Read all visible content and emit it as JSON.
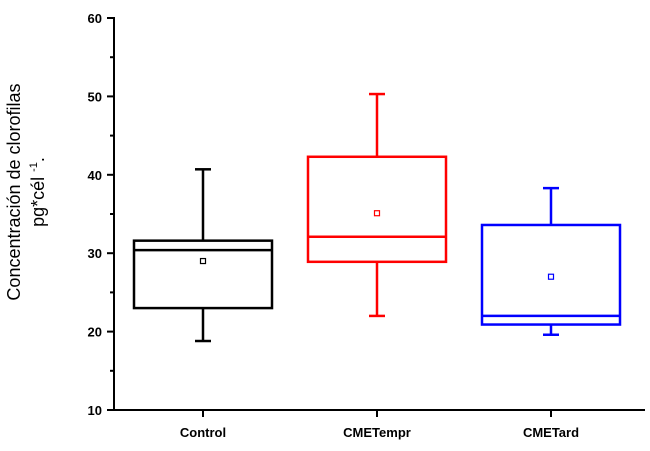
{
  "chart_data": {
    "type": "box",
    "title": "",
    "xlabel": "",
    "ylabel_line1": "Concentración de clorofilas",
    "ylabel_line2": "pg*cél",
    "ylabel_sup": "-1",
    "ylabel_suffix": ".",
    "ylim": [
      10,
      60
    ],
    "yticks": [
      10,
      20,
      30,
      40,
      50,
      60
    ],
    "categories": [
      "Control",
      "CMETempr",
      "CMETard"
    ],
    "series": [
      {
        "name": "Control",
        "color": "#000000",
        "whisker_low": 18.8,
        "q1": 23.0,
        "median": 30.4,
        "q3": 31.6,
        "whisker_high": 40.7,
        "mean": 29.0
      },
      {
        "name": "CMETempr",
        "color": "#ff0000",
        "whisker_low": 22.0,
        "q1": 28.9,
        "median": 32.1,
        "q3": 42.3,
        "whisker_high": 50.3,
        "mean": 35.1
      },
      {
        "name": "CMETard",
        "color": "#0000ff",
        "whisker_low": 19.6,
        "q1": 20.9,
        "median": 22.0,
        "q3": 33.6,
        "whisker_high": 38.3,
        "mean": 27.0
      }
    ]
  }
}
